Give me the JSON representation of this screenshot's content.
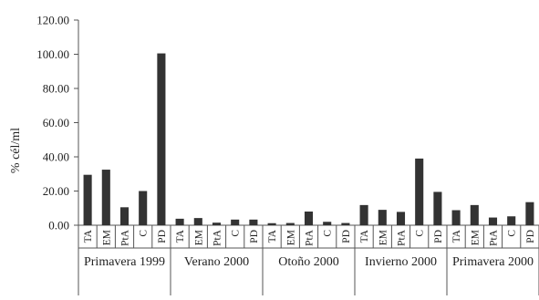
{
  "chart_data": {
    "type": "bar",
    "ylabel": "% cél/ml",
    "ylim": [
      0,
      120
    ],
    "yticks": [
      "0.00",
      "20.00",
      "40.00",
      "60.00",
      "80.00",
      "100.00",
      "120.00"
    ],
    "grid": false,
    "legend": "none",
    "groups": [
      {
        "label": "Primavera 1999",
        "categories": [
          "TA",
          "EM",
          "PtA",
          "C",
          "PD"
        ],
        "values": [
          29.5,
          32.5,
          10.5,
          20,
          100.5
        ]
      },
      {
        "label": "Verano 2000",
        "categories": [
          "TA",
          "EM",
          "PtA",
          "C",
          "PD"
        ],
        "values": [
          3.8,
          4.2,
          1.5,
          3.3,
          3.3
        ]
      },
      {
        "label": "Otoño 2000",
        "categories": [
          "TA",
          "EM",
          "PtA",
          "C",
          "PD"
        ],
        "values": [
          1.2,
          1.3,
          8,
          2,
          1.3
        ]
      },
      {
        "label": "Invierno 2000",
        "categories": [
          "TA",
          "EM",
          "PtA",
          "C",
          "PD"
        ],
        "values": [
          11.8,
          9,
          7.8,
          39,
          19.5
        ]
      },
      {
        "label": "Primavera 2000",
        "categories": [
          "TA",
          "EM",
          "PtA",
          "C",
          "PD"
        ],
        "values": [
          8.8,
          11.8,
          4.5,
          5.2,
          13.5
        ]
      }
    ],
    "colors": {
      "bar": "#333333",
      "axis": "#555555",
      "text": "#222222"
    }
  }
}
